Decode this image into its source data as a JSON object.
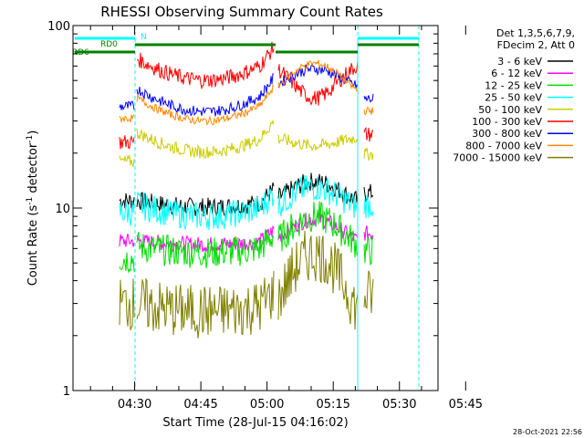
{
  "chart_data": {
    "type": "line",
    "title": "RHESSI Observing Summary Count Rates",
    "ylabel_text": "Count Rate (s",
    "ylabel_sup": "-1",
    "ylabel_end": " detector",
    "ylabel_sup2": "-1",
    "ylabel_close": ")",
    "xlabel": "Start Time (28-Jul-15 04:16:02)",
    "y_scale": "log",
    "ylim": [
      1,
      100
    ],
    "y_tick_labels": [
      "1",
      "10",
      "100"
    ],
    "x_tick_labels": [
      "04:30",
      "04:45",
      "05:00",
      "05:15",
      "05:30",
      "05:45"
    ],
    "x_start": "04:16:02",
    "legend_header": [
      "Det 1,3,5,6,7,9,",
      "FDecim 2, Att 0"
    ],
    "series": [
      {
        "name": "3 - 6 keV",
        "color": "#000000"
      },
      {
        "name": "6 - 12 keV",
        "color": "#ff00ff"
      },
      {
        "name": "12 - 25 keV",
        "color": "#00dd00"
      },
      {
        "name": "25 - 50 keV",
        "color": "#00ffff"
      },
      {
        "name": "50 - 100 keV",
        "color": "#cccc00"
      },
      {
        "name": "100 - 300 keV",
        "color": "#ff0000"
      },
      {
        "name": "300 - 800 keV",
        "color": "#0000ff"
      },
      {
        "name": "800 - 7000 keV",
        "color": "#ff8800"
      },
      {
        "name": "7000 - 15000 keV",
        "color": "#808000"
      }
    ],
    "bar_labels": {
      "rd0": "RD0",
      "rd6": "RD6",
      "n": "N"
    },
    "timestamp": "28-Oct-2021 22:56"
  }
}
